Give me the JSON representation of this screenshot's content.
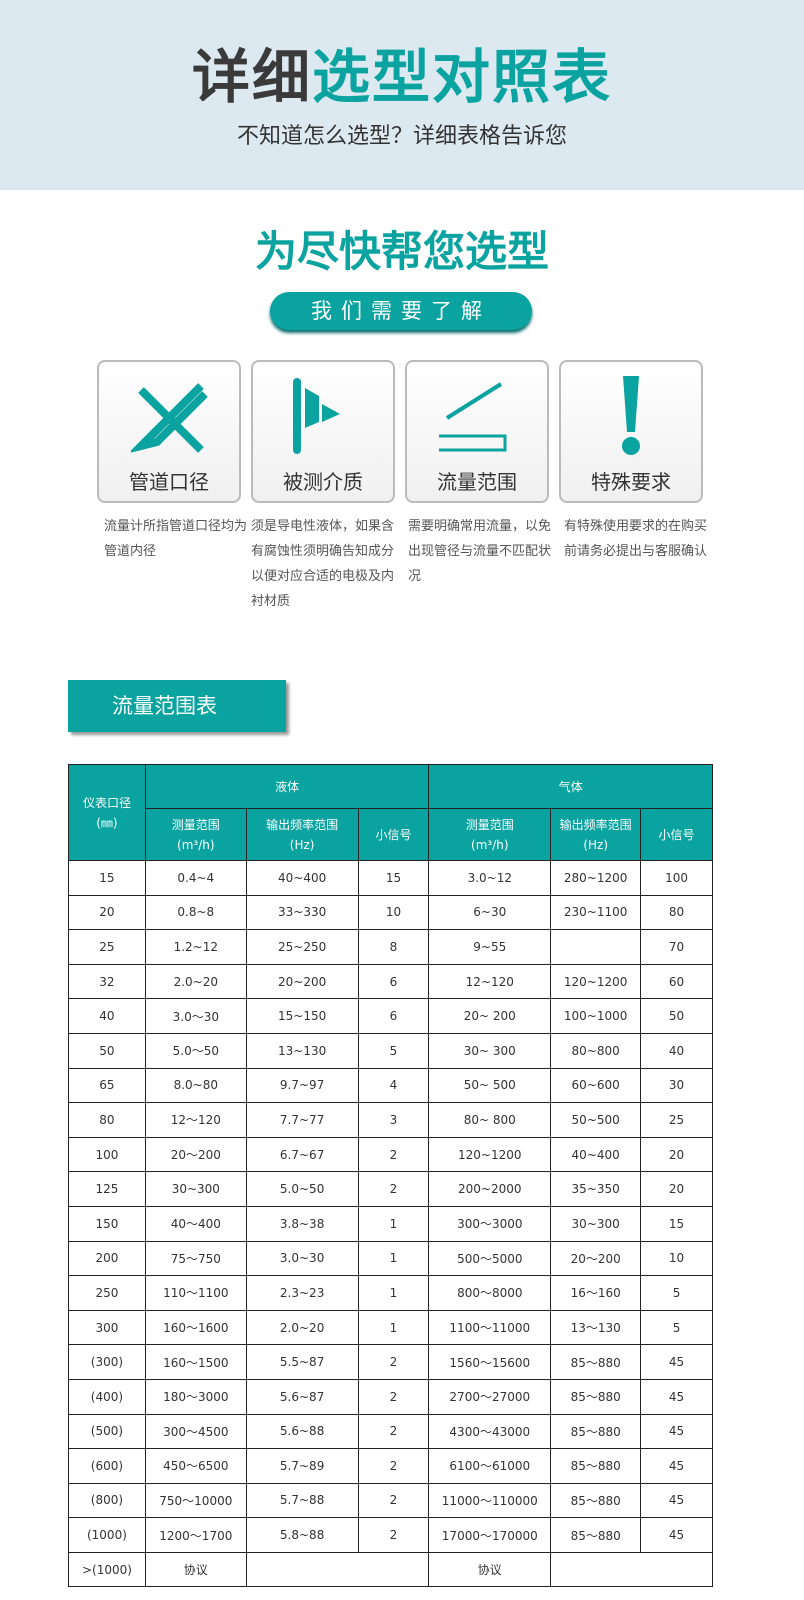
{
  "hero": {
    "title_a": "详细",
    "title_b": "选型对照表",
    "subtitle": "不知道怎么选型？详细表格告诉您"
  },
  "section": {
    "title": "为尽快帮您选型",
    "pill": "我们需要了解"
  },
  "cards": [
    {
      "label": "管道口径",
      "icon": "ruler-pencil-icon",
      "desc": "流量计所指管道口径均为管道内径"
    },
    {
      "label": "被测介质",
      "icon": "flag-icon",
      "desc": "须是导电性液体，如果含有腐蚀性须明确告知成分以便对应合适的电极及内衬材质"
    },
    {
      "label": "流量范围",
      "icon": "range-ruler-icon",
      "desc": "需要明确常用流量，以免出现管径与流量不匹配状况"
    },
    {
      "label": "特殊要求",
      "icon": "exclamation-icon",
      "desc": "有特殊使用要求的在购买前请务必提出与客服确认"
    }
  ],
  "table_title": "流量范围表",
  "accent": "#0aa3a0",
  "table": {
    "h_size": "仪表口径",
    "h_size_unit": "(㎜)",
    "h_liquid": "液体",
    "h_gas": "气体",
    "h_range": "测量范围",
    "h_range_unit": "(m³/h)",
    "h_freq": "输出频率范围",
    "h_freq_unit": "(Hz)",
    "h_gas_freq": "输出频率范围(Hz)",
    "h_signal": "小信号",
    "rows": [
      [
        "15",
        "0.4~4",
        "40~400",
        "15",
        "3.0~12",
        "280~1200",
        "100"
      ],
      [
        "20",
        "0.8~8",
        "33~330",
        "10",
        "6~30",
        "230~1100",
        "80"
      ],
      [
        "25",
        "1.2~12",
        "25~250",
        "8",
        "9~55",
        "",
        "70"
      ],
      [
        "32",
        "2.0~20",
        "20~200",
        "6",
        "12~120",
        "120~1200",
        "60"
      ],
      [
        "40",
        "3.0～30",
        "15~150",
        "6",
        "20~ 200",
        "100~1000",
        "50"
      ],
      [
        "50",
        "5.0～50",
        "13~130",
        "5",
        "30~ 300",
        "80~800",
        "40"
      ],
      [
        "65",
        "8.0~80",
        "9.7~97",
        "4",
        "50~ 500",
        "60~600",
        "30"
      ],
      [
        "80",
        "12～120",
        "7.7~77",
        "3",
        "80~ 800",
        "50~500",
        "25"
      ],
      [
        "100",
        "20～200",
        "6.7~67",
        "2",
        "120~1200",
        "40~400",
        "20"
      ],
      [
        "125",
        "30~300",
        "5.0~50",
        "2",
        "200~2000",
        "35~350",
        "20"
      ],
      [
        "150",
        "40～400",
        "3.8~38",
        "1",
        "300～3000",
        "30~300",
        "15"
      ],
      [
        "200",
        "75～750",
        "3.0~30",
        "1",
        "500～5000",
        "20～200",
        "10"
      ],
      [
        "250",
        "110～1100",
        "2.3~23",
        "1",
        "800～8000",
        "16～160",
        "5"
      ],
      [
        "300",
        "160～1600",
        "2.0~20",
        "1",
        "1100～11000",
        "13～130",
        "5"
      ],
      [
        "(300)",
        "160～1500",
        "5.5~87",
        "2",
        "1560～15600",
        "85～880",
        "45"
      ],
      [
        "(400)",
        "180～3000",
        "5.6~87",
        "2",
        "2700～27000",
        "85～880",
        "45"
      ],
      [
        "(500)",
        "300～4500",
        "5.6~88",
        "2",
        "4300～43000",
        "85～880",
        "45"
      ],
      [
        "(600)",
        "450～6500",
        "5.7~89",
        "2",
        "6100～61000",
        "85～880",
        "45"
      ],
      [
        "(800)",
        "750～10000",
        "5.7~88",
        "2",
        "11000～110000",
        "85～880",
        "45"
      ],
      [
        "(1000)",
        "1200～1700",
        "5.8~88",
        "2",
        "17000～170000",
        "85～880",
        "45"
      ]
    ],
    "last": {
      "size": ">(1000)",
      "liquid": "协议",
      "gas": "协议"
    }
  }
}
